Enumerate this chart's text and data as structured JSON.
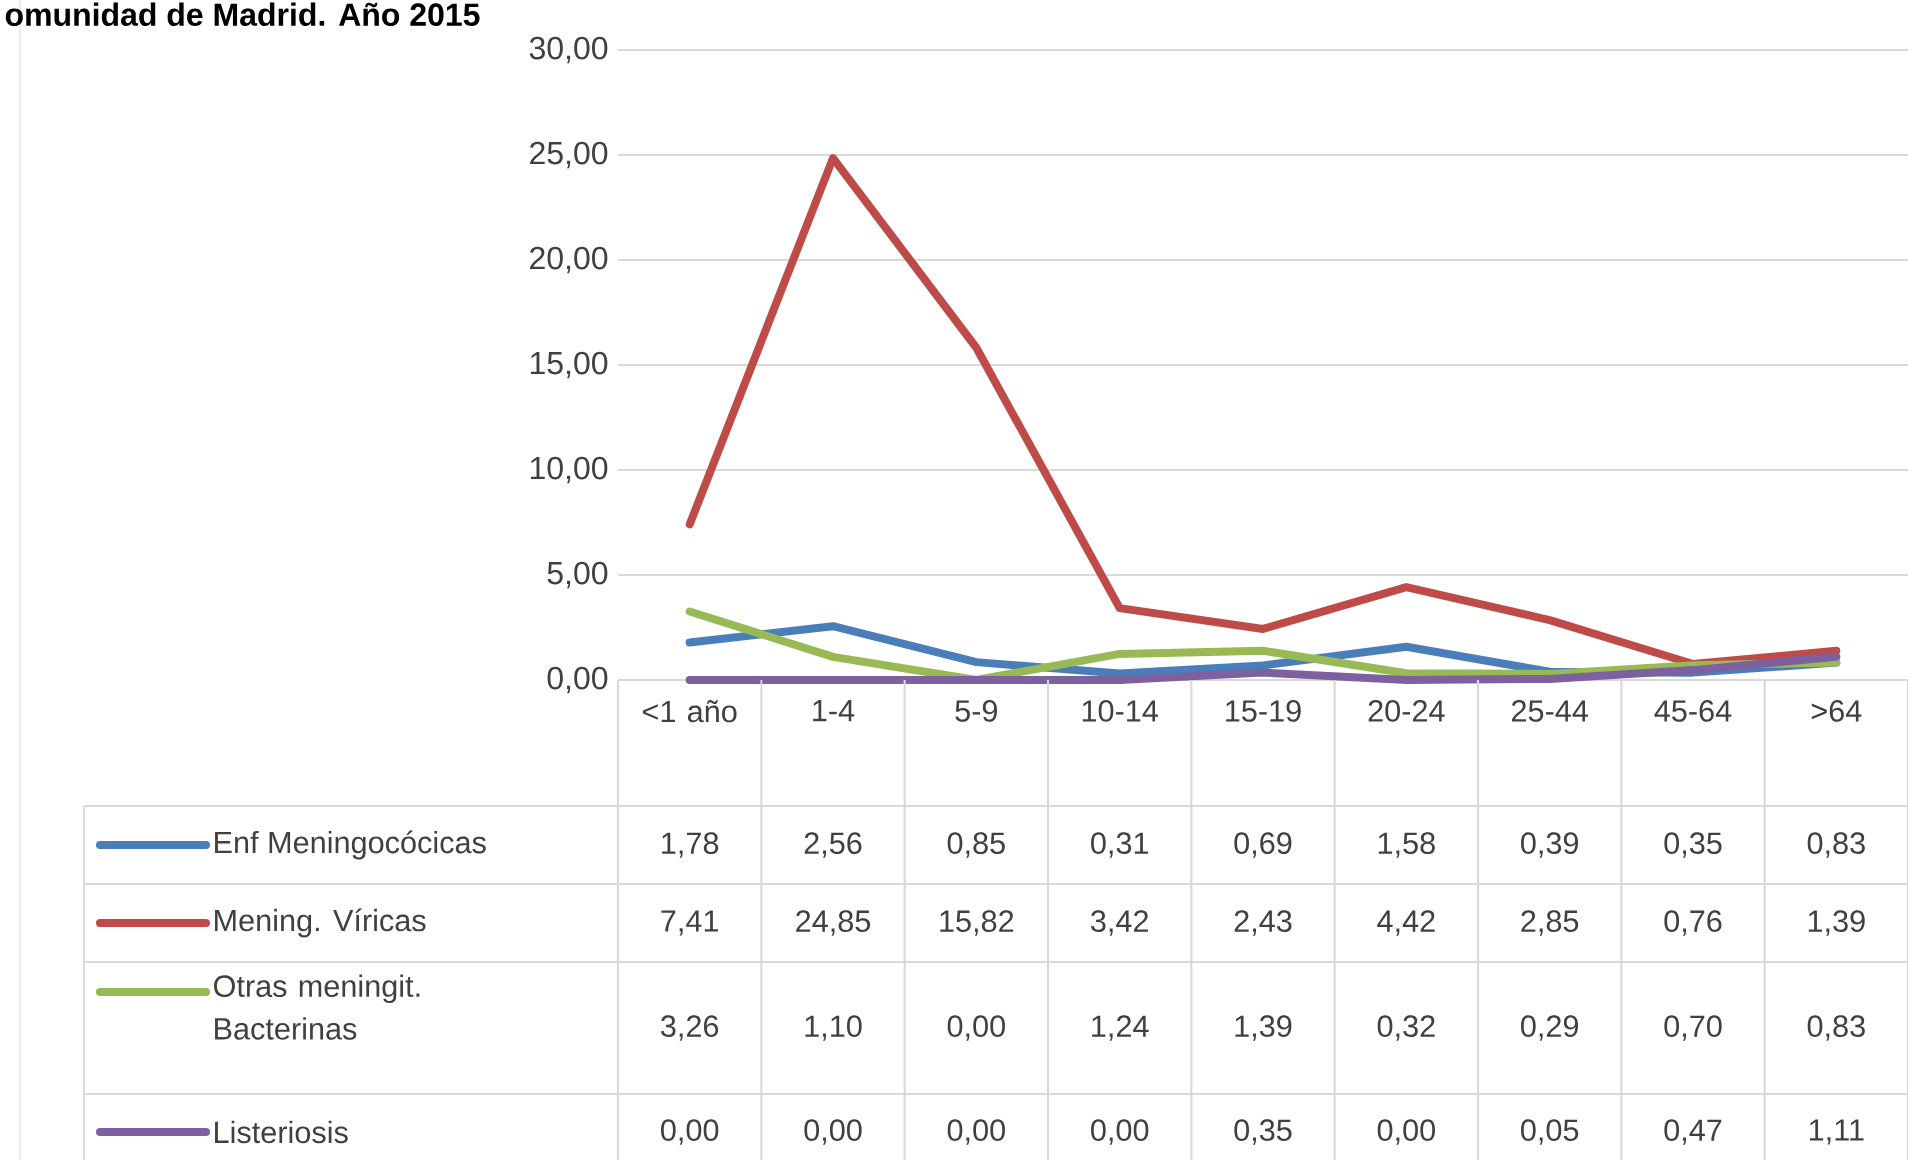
{
  "chart_data": {
    "type": "line",
    "title": "omunidad de Madrid. Año 2015",
    "categories": [
      "<1 año",
      "1-4",
      "5-9",
      "10-14",
      "15-19",
      "20-24",
      "25-44",
      "45-64",
      ">64"
    ],
    "series": [
      {
        "name": "Enf Meningocócicas",
        "color": "#4a7ebb",
        "values": [
          1.78,
          2.56,
          0.85,
          0.31,
          0.69,
          1.58,
          0.39,
          0.35,
          0.83
        ],
        "value_labels": [
          "1,78",
          "2,56",
          "0,85",
          "0,31",
          "0,69",
          "1,58",
          "0,39",
          "0,35",
          "0,83"
        ]
      },
      {
        "name": "Mening. Víricas",
        "color": "#be4b48",
        "values": [
          7.41,
          24.85,
          15.82,
          3.42,
          2.43,
          4.42,
          2.85,
          0.76,
          1.39
        ],
        "value_labels": [
          "7,41",
          "24,85",
          "15,82",
          "3,42",
          "2,43",
          "4,42",
          "2,85",
          "0,76",
          "1,39"
        ]
      },
      {
        "name": "Otras meningit. Bacterinas",
        "color": "#98b954",
        "values": [
          3.26,
          1.1,
          0.0,
          1.24,
          1.39,
          0.32,
          0.29,
          0.7,
          0.83
        ],
        "value_labels": [
          "3,26",
          "1,10",
          "0,00",
          "1,24",
          "1,39",
          "0,32",
          "0,29",
          "0,70",
          "0,83"
        ]
      },
      {
        "name": "Listeriosis",
        "color": "#7d60a0",
        "values": [
          0.0,
          0.0,
          0.0,
          0.0,
          0.35,
          0.0,
          0.05,
          0.47,
          1.11
        ],
        "value_labels": [
          "0,00",
          "0,00",
          "0,00",
          "0,00",
          "0,35",
          "0,00",
          "0,05",
          "0,47",
          "1,11"
        ]
      }
    ],
    "ylim": [
      0,
      30
    ],
    "yticks": [
      {
        "value": 0,
        "label": "0,00"
      },
      {
        "value": 5,
        "label": "5,00"
      },
      {
        "value": 10,
        "label": "10,00"
      },
      {
        "value": 15,
        "label": "15,00"
      },
      {
        "value": 20,
        "label": "20,00"
      },
      {
        "value": 25,
        "label": "25,00"
      },
      {
        "value": 30,
        "label": "30,00"
      }
    ],
    "grid": "y",
    "legend": "bottom"
  }
}
